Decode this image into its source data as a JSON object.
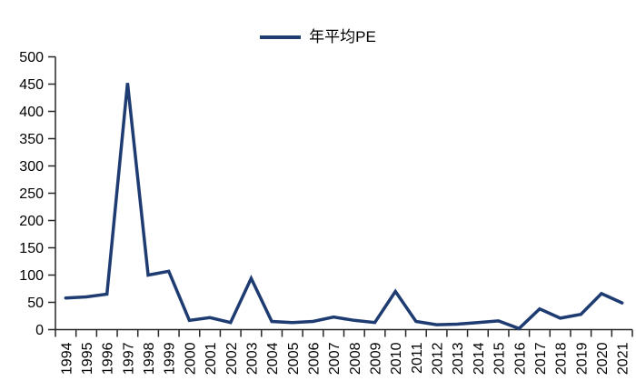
{
  "chart_data": {
    "type": "line",
    "title": "",
    "legend": "年平均PE",
    "legend_position": "top-center",
    "categories": [
      "1994",
      "1995",
      "1996",
      "1997",
      "1998",
      "1999",
      "2000",
      "2001",
      "2002",
      "2003",
      "2004",
      "2005",
      "2006",
      "2007",
      "2008",
      "2009",
      "2010",
      "2011",
      "2012",
      "2013",
      "2014",
      "2015",
      "2016",
      "2017",
      "2018",
      "2019",
      "2020",
      "2021"
    ],
    "series": [
      {
        "name": "年平均PE",
        "values": [
          58,
          60,
          65,
          452,
          100,
          107,
          17,
          22,
          13,
          94,
          15,
          13,
          15,
          23,
          17,
          13,
          70,
          15,
          9,
          10,
          13,
          16,
          2,
          38,
          21,
          28,
          66,
          49
        ]
      }
    ],
    "xlabel": "",
    "ylabel": "",
    "ylim": [
      0,
      500
    ],
    "ytick_step": 50,
    "yticks": [
      0,
      50,
      100,
      150,
      200,
      250,
      300,
      350,
      400,
      450,
      500
    ],
    "grid": false,
    "line_color": "#1e3c72",
    "axis_color": "#262626",
    "text_color": "#000000"
  }
}
